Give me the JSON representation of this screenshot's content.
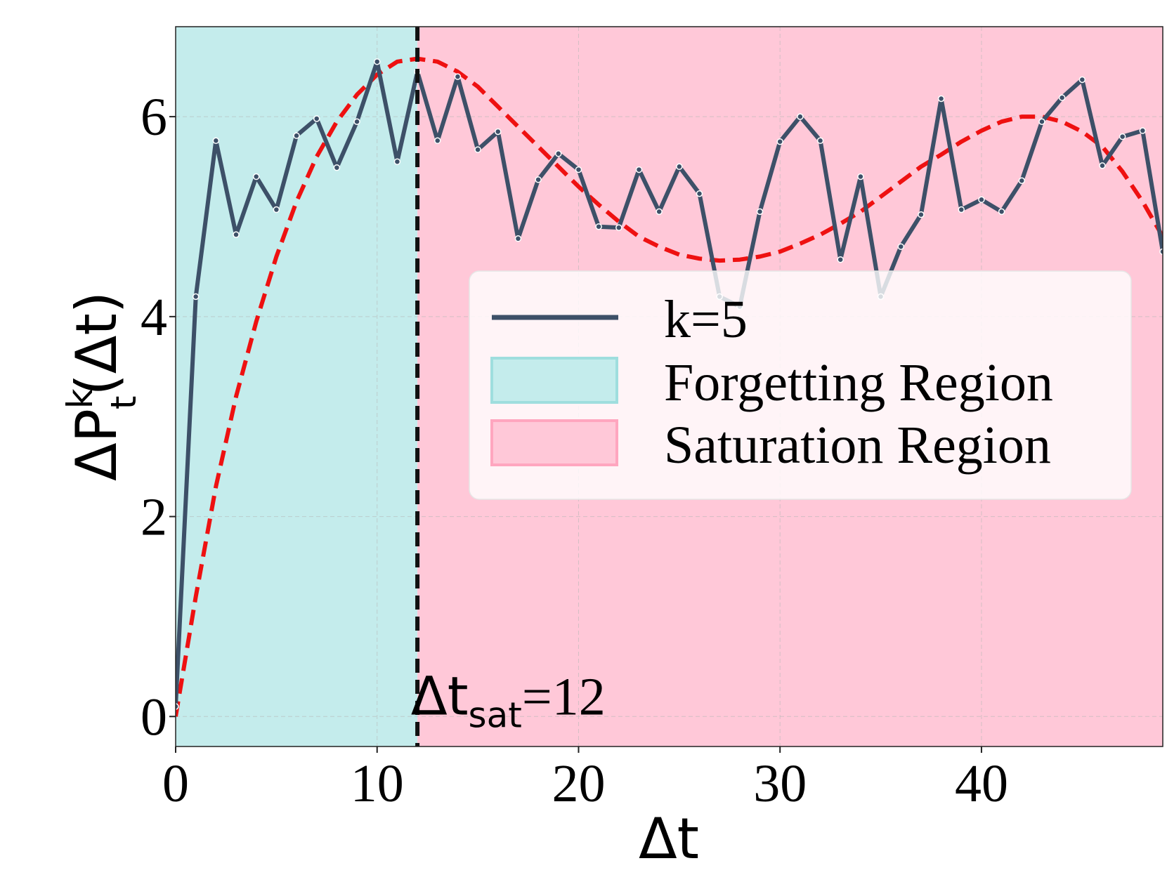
{
  "chart_data": {
    "type": "line",
    "xlabel": "Δt",
    "ylabel": {
      "base": "ΔP",
      "sup": "k",
      "sub": "t",
      "tail": "(Δt)"
    },
    "xlim": [
      0,
      49
    ],
    "ylim": [
      -0.3,
      6.9
    ],
    "xticks": [
      0,
      10,
      20,
      30,
      40
    ],
    "xtick_labels": [
      "0",
      "10",
      "20",
      "30",
      "40"
    ],
    "yticks": [
      0,
      2,
      4,
      6
    ],
    "ytick_labels": [
      "0",
      "2",
      "4",
      "6"
    ],
    "grid": true,
    "regions": [
      {
        "name": "Forgetting Region",
        "from": 0,
        "to": 12,
        "color": "#c4ecec"
      },
      {
        "name": "Saturation Region",
        "from": 12,
        "to": 49,
        "color": "#ffc8d8"
      }
    ],
    "saturation_line": {
      "x": 12,
      "color": "#111111"
    },
    "annotation": {
      "base": "Δt",
      "sub": "sat",
      "tail": "=12",
      "x": 13,
      "y": 0.02
    },
    "series": [
      {
        "name": "k=5",
        "color": "#3d5068",
        "x": [
          0,
          1,
          2,
          3,
          4,
          5,
          6,
          7,
          8,
          9,
          10,
          11,
          12,
          13,
          14,
          15,
          16,
          17,
          18,
          19,
          20,
          21,
          22,
          23,
          24,
          25,
          26,
          27,
          28,
          29,
          30,
          31,
          32,
          33,
          34,
          35,
          36,
          37,
          38,
          39,
          40,
          41,
          42,
          43,
          44,
          45,
          46,
          47,
          48,
          49
        ],
        "values": [
          0.1,
          4.2,
          5.76,
          4.82,
          5.4,
          5.07,
          5.81,
          5.98,
          5.49,
          5.95,
          6.55,
          5.55,
          6.45,
          5.76,
          6.4,
          5.67,
          5.85,
          4.78,
          5.37,
          5.63,
          5.47,
          4.9,
          4.89,
          5.47,
          5.05,
          5.5,
          5.23,
          4.2,
          4.1,
          5.05,
          5.75,
          6.0,
          5.76,
          4.57,
          5.4,
          4.2,
          4.7,
          5.02,
          6.18,
          5.07,
          5.17,
          5.05,
          5.36,
          5.95,
          6.19,
          6.37,
          5.51,
          5.8,
          5.86,
          4.65
        ]
      }
    ],
    "fit": {
      "name": "fit",
      "color": "#ee1111",
      "x": [
        0,
        1,
        2,
        3,
        4,
        5,
        6,
        7,
        8,
        9,
        10,
        11,
        12,
        13,
        14,
        15,
        16,
        17,
        18,
        19,
        20,
        21,
        22,
        23,
        24,
        25,
        26,
        27,
        28,
        29,
        30,
        31,
        32,
        33,
        34,
        35,
        36,
        37,
        38,
        39,
        40,
        41,
        42,
        43,
        44,
        45,
        46,
        47,
        48,
        49
      ],
      "values": [
        0.0,
        1.2,
        2.3,
        3.2,
        3.95,
        4.6,
        5.15,
        5.6,
        5.95,
        6.22,
        6.42,
        6.55,
        6.58,
        6.55,
        6.45,
        6.3,
        6.1,
        5.9,
        5.7,
        5.5,
        5.3,
        5.12,
        4.95,
        4.8,
        4.7,
        4.62,
        4.58,
        4.56,
        4.57,
        4.6,
        4.65,
        4.73,
        4.82,
        4.93,
        5.05,
        5.2,
        5.35,
        5.5,
        5.62,
        5.75,
        5.86,
        5.95,
        6.0,
        6.0,
        5.95,
        5.85,
        5.7,
        5.45,
        5.15,
        4.8
      ]
    },
    "legend": {
      "position": "center-right",
      "entries": [
        "k=5",
        "Forgetting Region",
        "Saturation Region"
      ]
    }
  }
}
